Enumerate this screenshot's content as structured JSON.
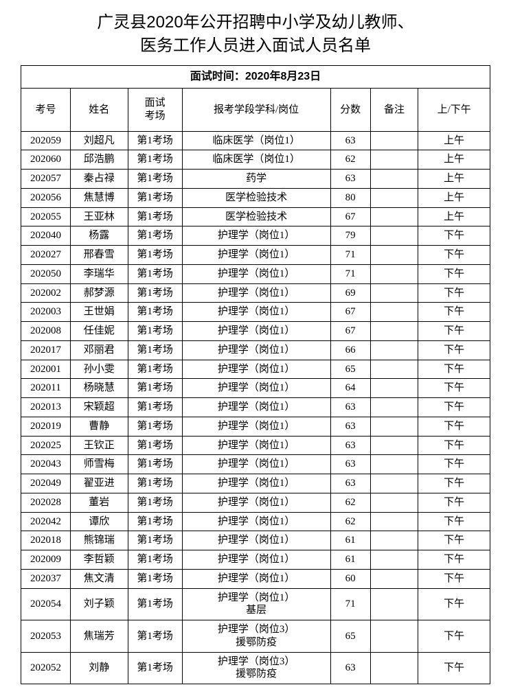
{
  "title_line1": "广灵县2020年公开招聘中小学及幼儿教师、",
  "title_line2": "医务工作人员进入面试人员名单",
  "interview_time": "面试时间：2020年8月23日",
  "columns": {
    "id": "考号",
    "name": "姓名",
    "room": "面试\n考场",
    "position": "报考学段学科/岗位",
    "score": "分数",
    "note": "备注",
    "ampm": "上/下午"
  },
  "rows": [
    {
      "id": "202059",
      "name": "刘超凡",
      "room": "第1考场",
      "position": "临床医学（岗位1）",
      "score": "63",
      "note": "",
      "ampm": "上午"
    },
    {
      "id": "202060",
      "name": "邱浩鹏",
      "room": "第1考场",
      "position": "临床医学（岗位1）",
      "score": "62",
      "note": "",
      "ampm": "上午"
    },
    {
      "id": "202057",
      "name": "秦占禄",
      "room": "第1考场",
      "position": "药学",
      "score": "63",
      "note": "",
      "ampm": "上午"
    },
    {
      "id": "202056",
      "name": "焦慧博",
      "room": "第1考场",
      "position": "医学检验技术",
      "score": "80",
      "note": "",
      "ampm": "上午"
    },
    {
      "id": "202055",
      "name": "王亚林",
      "room": "第1考场",
      "position": "医学检验技术",
      "score": "67",
      "note": "",
      "ampm": "上午"
    },
    {
      "id": "202040",
      "name": "杨露",
      "room": "第1考场",
      "position": "护理学（岗位1）",
      "score": "79",
      "note": "",
      "ampm": "下午"
    },
    {
      "id": "202027",
      "name": "邢春雪",
      "room": "第1考场",
      "position": "护理学（岗位1）",
      "score": "71",
      "note": "",
      "ampm": "下午"
    },
    {
      "id": "202050",
      "name": "李瑞华",
      "room": "第1考场",
      "position": "护理学（岗位1）",
      "score": "71",
      "note": "",
      "ampm": "下午"
    },
    {
      "id": "202002",
      "name": "郝梦源",
      "room": "第1考场",
      "position": "护理学（岗位1）",
      "score": "69",
      "note": "",
      "ampm": "下午"
    },
    {
      "id": "202003",
      "name": "王世娟",
      "room": "第1考场",
      "position": "护理学（岗位1）",
      "score": "67",
      "note": "",
      "ampm": "下午"
    },
    {
      "id": "202008",
      "name": "任佳妮",
      "room": "第1考场",
      "position": "护理学（岗位1）",
      "score": "67",
      "note": "",
      "ampm": "下午"
    },
    {
      "id": "202017",
      "name": "邓丽君",
      "room": "第1考场",
      "position": "护理学（岗位1）",
      "score": "66",
      "note": "",
      "ampm": "下午"
    },
    {
      "id": "202001",
      "name": "孙小雯",
      "room": "第1考场",
      "position": "护理学（岗位1）",
      "score": "65",
      "note": "",
      "ampm": "下午"
    },
    {
      "id": "202011",
      "name": "杨晓慧",
      "room": "第1考场",
      "position": "护理学（岗位1）",
      "score": "64",
      "note": "",
      "ampm": "下午"
    },
    {
      "id": "202013",
      "name": "宋颖超",
      "room": "第1考场",
      "position": "护理学（岗位1）",
      "score": "63",
      "note": "",
      "ampm": "下午"
    },
    {
      "id": "202019",
      "name": "曹静",
      "room": "第1考场",
      "position": "护理学（岗位1）",
      "score": "63",
      "note": "",
      "ampm": "下午"
    },
    {
      "id": "202025",
      "name": "王钦正",
      "room": "第1考场",
      "position": "护理学（岗位1）",
      "score": "63",
      "note": "",
      "ampm": "下午"
    },
    {
      "id": "202043",
      "name": "师雪梅",
      "room": "第1考场",
      "position": "护理学（岗位1）",
      "score": "63",
      "note": "",
      "ampm": "下午"
    },
    {
      "id": "202049",
      "name": "翟亚进",
      "room": "第1考场",
      "position": "护理学（岗位1）",
      "score": "63",
      "note": "",
      "ampm": "下午"
    },
    {
      "id": "202028",
      "name": "董岩",
      "room": "第1考场",
      "position": "护理学（岗位1）",
      "score": "62",
      "note": "",
      "ampm": "下午"
    },
    {
      "id": "202042",
      "name": "谭欣",
      "room": "第1考场",
      "position": "护理学（岗位1）",
      "score": "62",
      "note": "",
      "ampm": "下午"
    },
    {
      "id": "202018",
      "name": "熊锦瑞",
      "room": "第1考场",
      "position": "护理学（岗位1）",
      "score": "61",
      "note": "",
      "ampm": "下午"
    },
    {
      "id": "202009",
      "name": "李哲颖",
      "room": "第1考场",
      "position": "护理学（岗位1）",
      "score": "61",
      "note": "",
      "ampm": "下午"
    },
    {
      "id": "202037",
      "name": "焦文清",
      "room": "第1考场",
      "position": "护理学（岗位1）",
      "score": "60",
      "note": "",
      "ampm": "下午"
    },
    {
      "id": "202054",
      "name": "刘子颖",
      "room": "第1考场",
      "position": "护理学（岗位1）\n基层",
      "score": "71",
      "note": "",
      "ampm": "下午"
    },
    {
      "id": "202053",
      "name": "焦瑞芳",
      "room": "第1考场",
      "position": "护理学（岗位3）\n援鄂防疫",
      "score": "65",
      "note": "",
      "ampm": "下午"
    },
    {
      "id": "202052",
      "name": "刘静",
      "room": "第1考场",
      "position": "护理学（岗位3）\n援鄂防疫",
      "score": "63",
      "note": "",
      "ampm": "下午"
    }
  ]
}
